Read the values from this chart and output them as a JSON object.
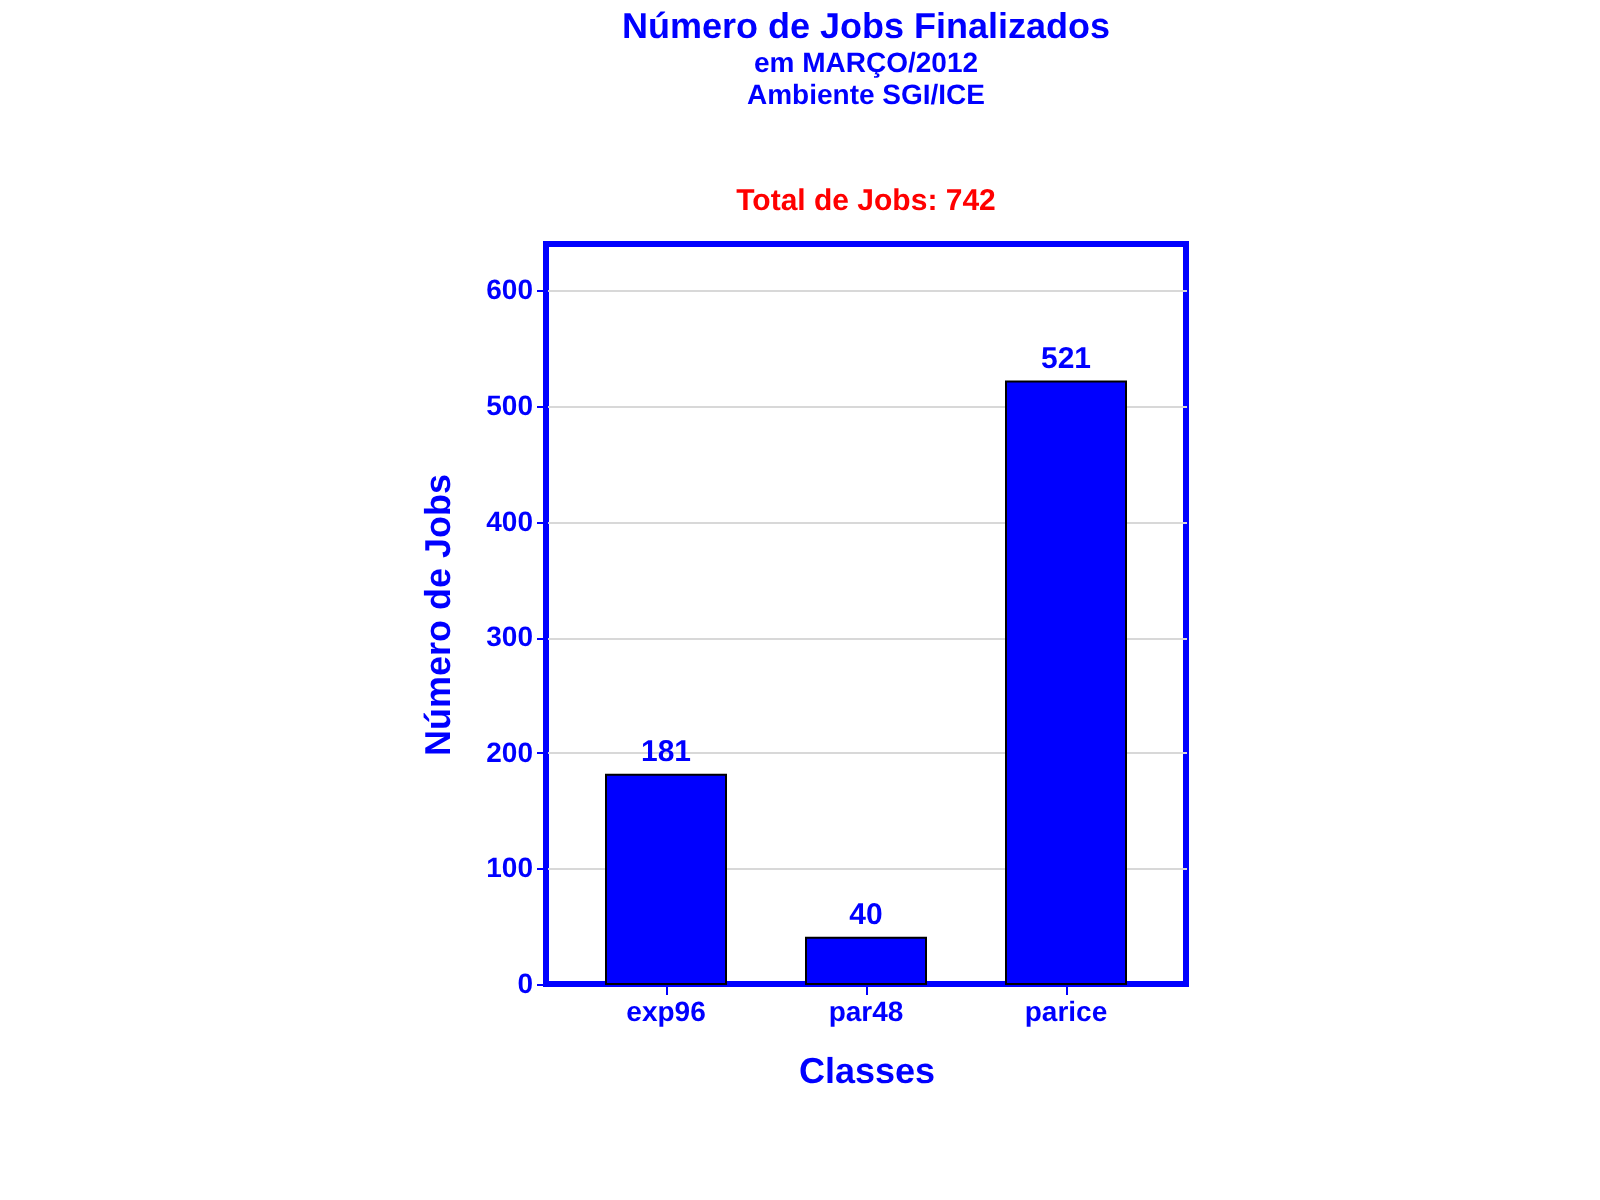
{
  "chart_data": {
    "type": "bar",
    "title": "Número de Jobs Finalizados",
    "subtitle": "em MARÇO/2012\nAmbiente SGI/ICE",
    "annotations": [
      "Total de Jobs: 742"
    ],
    "xlabel": "Classes",
    "ylabel": "Número de Jobs",
    "categories": [
      "exp96",
      "par48",
      "parice"
    ],
    "values": [
      181,
      40,
      521
    ],
    "color": "#0000ff",
    "ylim": [
      0,
      640
    ],
    "yticks": [
      0,
      100,
      200,
      300,
      400,
      500,
      600
    ],
    "grid": "y",
    "data_labels": true
  }
}
